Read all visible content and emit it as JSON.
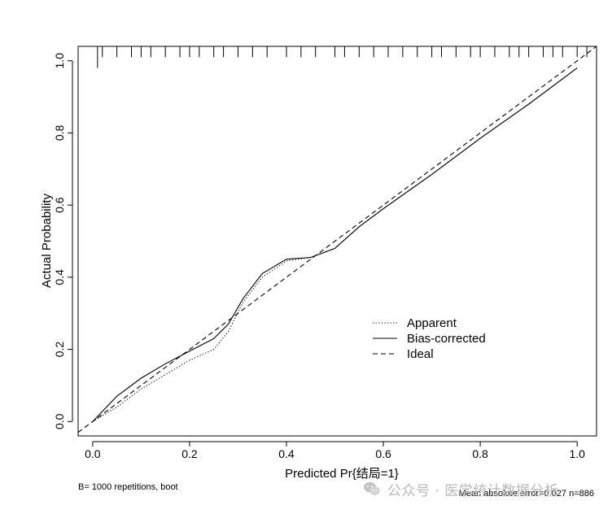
{
  "chart_data": {
    "type": "line",
    "title": "",
    "xlabel": "Predicted Pr{结局=1}",
    "ylabel": "Actual Probability",
    "xlim": [
      -0.03,
      1.04
    ],
    "ylim": [
      -0.04,
      1.04
    ],
    "x_ticks": [
      0.0,
      0.2,
      0.4,
      0.6,
      0.8,
      1.0
    ],
    "x_tick_labels": [
      "0.0",
      "0.2",
      "0.4",
      "0.6",
      "0.8",
      "1.0"
    ],
    "y_ticks": [
      0.0,
      0.2,
      0.4,
      0.6,
      0.8,
      1.0
    ],
    "y_tick_labels": [
      "0.0",
      "0.2",
      "0.4",
      "0.6",
      "0.8",
      "1.0"
    ],
    "grid": false,
    "legend_position": "center-right",
    "series": [
      {
        "name": "Apparent",
        "style": "dotted",
        "x": [
          0.0,
          0.05,
          0.1,
          0.15,
          0.2,
          0.25,
          0.28,
          0.31,
          0.35,
          0.4,
          0.45,
          0.5,
          0.55,
          0.6,
          0.7,
          0.8,
          0.9,
          1.0
        ],
        "y": [
          0.0,
          0.04,
          0.09,
          0.13,
          0.17,
          0.2,
          0.25,
          0.33,
          0.4,
          0.445,
          0.455,
          0.48,
          0.54,
          0.59,
          0.685,
          0.785,
          0.88,
          0.98
        ]
      },
      {
        "name": "Bias-corrected",
        "style": "solid",
        "x": [
          0.0,
          0.05,
          0.1,
          0.15,
          0.2,
          0.25,
          0.28,
          0.31,
          0.35,
          0.4,
          0.45,
          0.5,
          0.55,
          0.6,
          0.7,
          0.8,
          0.9,
          1.0
        ],
        "y": [
          0.0,
          0.07,
          0.12,
          0.16,
          0.195,
          0.23,
          0.27,
          0.34,
          0.41,
          0.45,
          0.455,
          0.48,
          0.54,
          0.59,
          0.685,
          0.785,
          0.88,
          0.98
        ]
      },
      {
        "name": "Ideal",
        "style": "dashed",
        "x": [
          -0.03,
          1.04
        ],
        "y": [
          -0.03,
          1.04
        ]
      }
    ],
    "rug_x": [
      0.01,
      0.02,
      0.05,
      0.08,
      0.1,
      0.12,
      0.15,
      0.18,
      0.2,
      0.22,
      0.25,
      0.27,
      0.3,
      0.33,
      0.36,
      0.4,
      0.43,
      0.46,
      0.5,
      0.52,
      0.55,
      0.58,
      0.61,
      0.64,
      0.67,
      0.7,
      0.72,
      0.75,
      0.78,
      0.8,
      0.83,
      0.86,
      0.88,
      0.9,
      0.93,
      0.95,
      0.97,
      1.0,
      1.02
    ],
    "rug_long_x": [
      0.01
    ],
    "footnote_left": "B= 1000 repetitions, boot",
    "footnote_right": "Mean absolute error=0.027 n=886",
    "colors": {
      "line": "#000000",
      "background": "#ffffff",
      "watermark": "#b9b9b9"
    }
  },
  "watermark": {
    "text": "公众号 · 医学统计数据分析",
    "icon": "wechat-logo-icon"
  }
}
